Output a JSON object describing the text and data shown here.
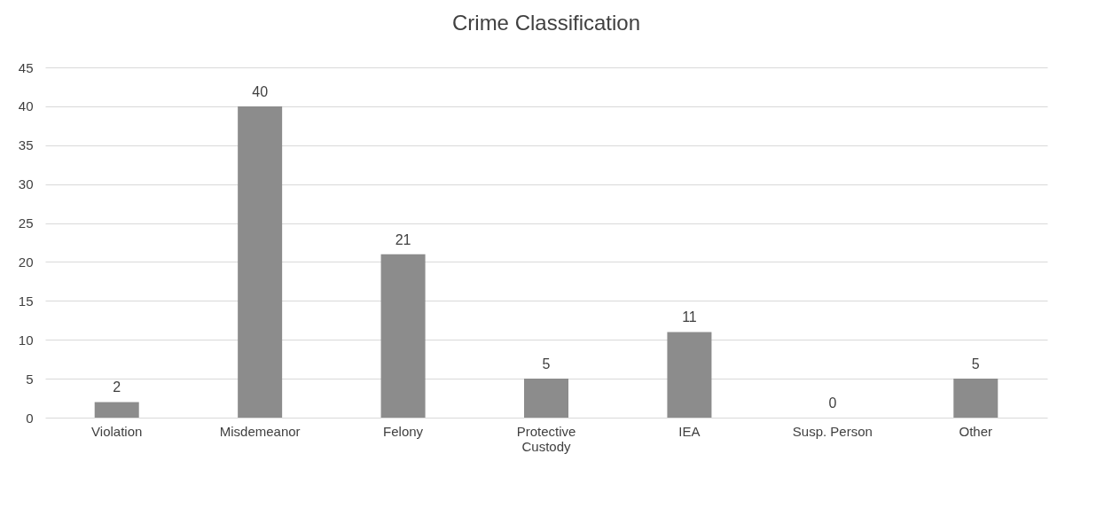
{
  "chart_data": {
    "type": "bar",
    "title": "Crime Classification",
    "categories": [
      "Violation",
      "Misdemeanor",
      "Felony",
      "Protective Custody",
      "IEA",
      "Susp. Person",
      "Other"
    ],
    "values": [
      2,
      40,
      21,
      5,
      11,
      0,
      5
    ],
    "color": "#8c8c8c",
    "ylim": [
      0,
      45
    ],
    "yticks": [
      0,
      5,
      10,
      15,
      20,
      25,
      30,
      35,
      40,
      45
    ],
    "grid": "y",
    "data_labels": true
  }
}
